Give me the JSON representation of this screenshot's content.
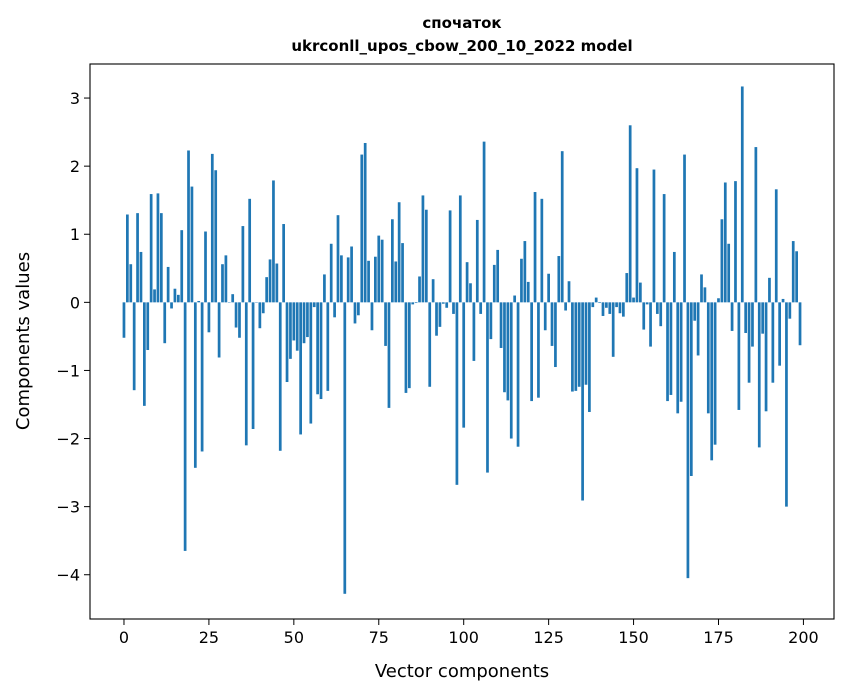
{
  "chart_data": {
    "type": "bar",
    "title_line1": "спочаток",
    "title_line2": "ukrconll_upos_cbow_200_10_2022 model",
    "xlabel": "Vector components",
    "ylabel": "Components values",
    "xlim": [
      -10,
      209
    ],
    "ylim": [
      -4.65,
      3.5
    ],
    "xticks": [
      0,
      25,
      50,
      75,
      100,
      125,
      150,
      175,
      200
    ],
    "yticks": [
      -4,
      -3,
      -2,
      -1,
      0,
      1,
      2,
      3
    ],
    "xtick_labels": [
      "0",
      "25",
      "50",
      "75",
      "100",
      "125",
      "150",
      "175",
      "200"
    ],
    "ytick_labels": [
      "−4",
      "−3",
      "−2",
      "−1",
      "0",
      "1",
      "2",
      "3"
    ],
    "bar_color": "#1f77b4",
    "grid": false,
    "values": [
      -0.52,
      1.29,
      0.56,
      -1.29,
      1.31,
      0.74,
      -1.52,
      -0.7,
      1.59,
      0.19,
      1.6,
      1.31,
      -0.6,
      0.52,
      -0.09,
      0.2,
      0.11,
      1.06,
      -3.65,
      2.23,
      1.7,
      -2.43,
      0.02,
      -2.19,
      1.04,
      -0.44,
      2.18,
      1.94,
      -0.81,
      0.56,
      0.69,
      0.0,
      0.12,
      -0.37,
      -0.52,
      1.12,
      -2.1,
      1.52,
      -1.86,
      0.0,
      -0.38,
      -0.16,
      0.37,
      0.63,
      1.79,
      0.57,
      -2.18,
      1.15,
      -1.17,
      -0.83,
      -0.56,
      -0.71,
      -1.94,
      -0.6,
      -0.51,
      -1.78,
      -0.07,
      -1.35,
      -1.42,
      0.41,
      -1.3,
      0.86,
      -0.22,
      1.28,
      0.69,
      -4.28,
      0.66,
      0.82,
      -0.31,
      -0.19,
      2.17,
      2.34,
      0.61,
      -0.41,
      0.67,
      0.98,
      0.92,
      -0.64,
      -1.55,
      1.22,
      0.6,
      1.47,
      0.87,
      -1.33,
      -1.26,
      -0.03,
      -0.01,
      0.38,
      1.57,
      1.36,
      -1.24,
      0.34,
      -0.49,
      -0.36,
      -0.02,
      -0.08,
      1.35,
      -0.17,
      -2.68,
      1.57,
      -1.84,
      0.59,
      0.28,
      -0.86,
      1.21,
      -0.17,
      2.36,
      -2.5,
      -0.54,
      0.55,
      0.77,
      -0.67,
      -1.32,
      -1.44,
      -2.0,
      0.1,
      -2.12,
      0.64,
      0.9,
      0.3,
      -1.45,
      1.62,
      -1.4,
      1.52,
      -0.41,
      0.42,
      -0.64,
      -0.95,
      0.68,
      2.22,
      -0.12,
      0.31,
      -1.31,
      -1.3,
      -1.24,
      -2.91,
      -1.21,
      -1.61,
      -0.07,
      0.07,
      -0.01,
      -0.2,
      -0.08,
      -0.17,
      -0.8,
      -0.07,
      -0.16,
      -0.21,
      0.43,
      2.6,
      0.07,
      1.97,
      0.29,
      -0.4,
      -0.03,
      -0.65,
      1.95,
      -0.17,
      -0.35,
      1.59,
      -1.45,
      -1.36,
      0.74,
      -1.63,
      -1.46,
      2.17,
      -4.05,
      -2.55,
      -0.27,
      -0.78,
      0.41,
      0.22,
      -1.63,
      -2.32,
      -2.09,
      0.06,
      1.22,
      1.76,
      0.86,
      -0.42,
      1.78,
      -1.58,
      3.17,
      -0.45,
      -1.18,
      -0.65,
      2.28,
      -2.13,
      -0.46,
      -1.6,
      0.36,
      -1.18,
      1.66,
      -0.93,
      0.05,
      -3.0,
      -0.24,
      0.9,
      0.75,
      -0.63
    ]
  }
}
